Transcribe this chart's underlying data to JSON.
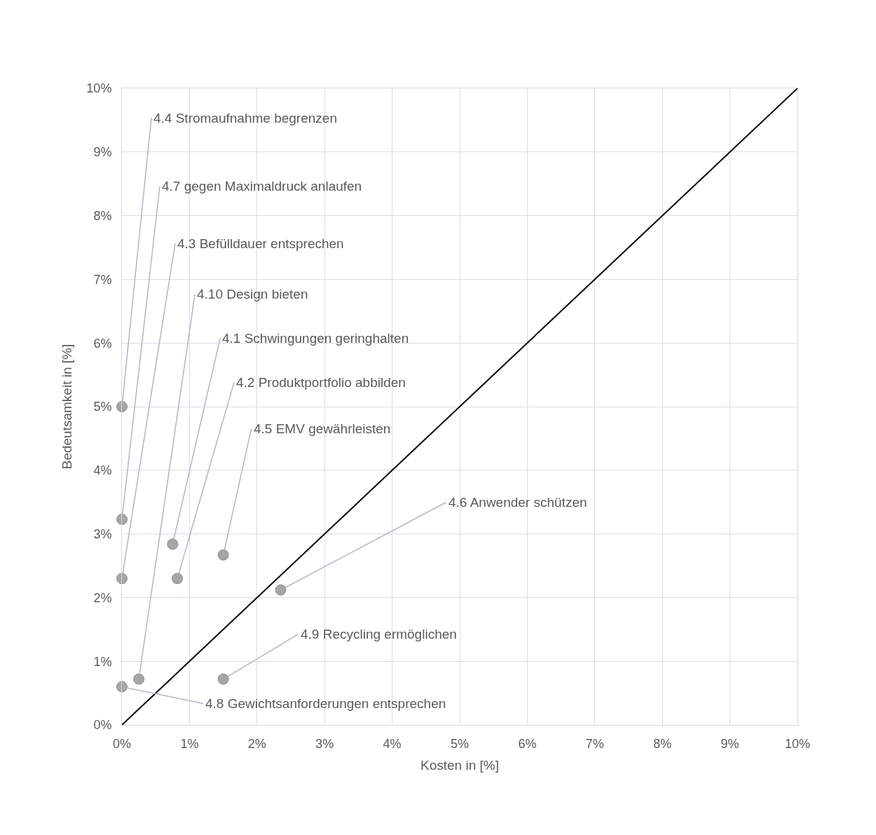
{
  "chart_data": {
    "type": "scatter",
    "xlabel": "Kosten in [%]",
    "ylabel": "Bedeutsamkeit in [%]",
    "series": [
      {
        "color": "#a6a6a6",
        "x": [
          0,
          0,
          0,
          0,
          0.25,
          0.75,
          0.82,
          1.5,
          2.35,
          1.5
        ],
        "values": [
          5.0,
          3.23,
          2.3,
          0.6,
          0.72,
          2.84,
          2.3,
          2.67,
          2.12,
          0.72
        ]
      },
      {
        "type": "line",
        "marker": "none",
        "color": "#000000",
        "x": [
          0,
          10
        ],
        "values": [
          0,
          10
        ]
      }
    ],
    "annotations": [
      {
        "text": "4.4 Stromaufnahme begrenzen",
        "x": 0,
        "y": 5.0
      },
      {
        "text": "4.7 gegen Maximaldruck anlaufen",
        "x": 0,
        "y": 3.23
      },
      {
        "text": "4.3 Befülldauer entsprechen",
        "x": 0,
        "y": 2.3
      },
      {
        "text": "4.10 Design bieten",
        "x": 0.25,
        "y": 0.72
      },
      {
        "text": "4.1 Schwingungen geringhalten",
        "x": 0.75,
        "y": 2.84
      },
      {
        "text": "4.2 Produktportfolio abbilden",
        "x": 0.82,
        "y": 2.3
      },
      {
        "text": "4.5 EMV gewährleisten",
        "x": 1.5,
        "y": 2.67
      },
      {
        "text": "4.6 Anwender schützen",
        "x": 2.35,
        "y": 2.12
      },
      {
        "text": "4.9 Recycling ermöglichen",
        "x": 1.5,
        "y": 0.72
      },
      {
        "text": "4.8 Gewichtsanforderungen entsprechen",
        "x": 0,
        "y": 0.6
      }
    ],
    "xlim": [
      0,
      10
    ],
    "ylim": [
      0,
      10
    ],
    "xticks": [
      {
        "value": 0,
        "label": "0%"
      },
      {
        "value": 1,
        "label": "1%"
      },
      {
        "value": 2,
        "label": "2%"
      },
      {
        "value": 3,
        "label": "3%"
      },
      {
        "value": 4,
        "label": "4%"
      },
      {
        "value": 5,
        "label": "5%"
      },
      {
        "value": 6,
        "label": "6%"
      },
      {
        "value": 7,
        "label": "7%"
      },
      {
        "value": 8,
        "label": "8%"
      },
      {
        "value": 9,
        "label": "9%"
      },
      {
        "value": 10,
        "label": "10%"
      }
    ],
    "yticks": [
      {
        "value": 0,
        "label": "0%"
      },
      {
        "value": 1,
        "label": "1%"
      },
      {
        "value": 2,
        "label": "2%"
      },
      {
        "value": 3,
        "label": "3%"
      },
      {
        "value": 4,
        "label": "4%"
      },
      {
        "value": 5,
        "label": "5%"
      },
      {
        "value": 6,
        "label": "6%"
      },
      {
        "value": 7,
        "label": "7%"
      },
      {
        "value": 8,
        "label": "8%"
      },
      {
        "value": 9,
        "label": "9%"
      },
      {
        "value": 10,
        "label": "10%"
      }
    ],
    "grid": true,
    "marker": "circle"
  }
}
